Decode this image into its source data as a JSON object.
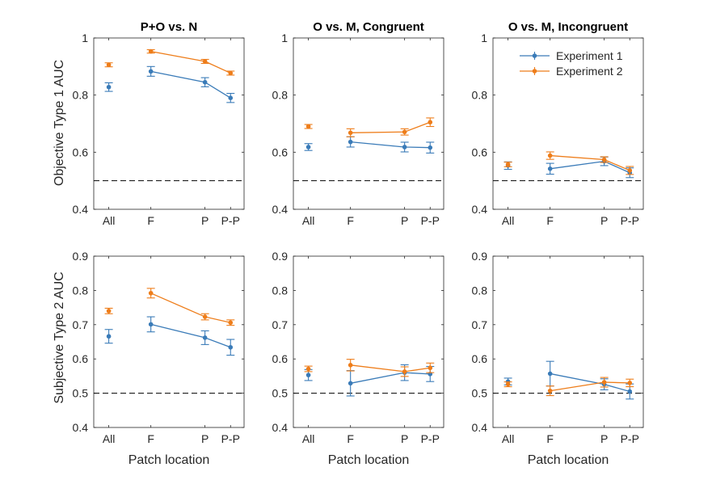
{
  "legend": [
    {
      "label": "Experiment 1",
      "color": "#3A7BB8"
    },
    {
      "label": "Experiment 2",
      "color": "#EE7D1A"
    }
  ],
  "row_ylabels": [
    "Objective Type 1 AUC",
    "Subjective Type 2 AUC"
  ],
  "xlabel": "Patch location",
  "chance_level": 0.5,
  "chart_data": [
    {
      "type": "line",
      "title": "P+O vs. N",
      "ylabel": "Objective Type 1 AUC",
      "xlabel": "",
      "categories": [
        "All",
        "F",
        "P",
        "P-P"
      ],
      "ylim": [
        0.4,
        1
      ],
      "yticks": [
        0.4,
        0.6,
        0.8,
        1
      ],
      "series": [
        {
          "name": "Experiment 1",
          "values": [
            0.828,
            0.883,
            0.845,
            0.79
          ],
          "errors": [
            0.015,
            0.017,
            0.016,
            0.016
          ]
        },
        {
          "name": "Experiment 2",
          "values": [
            0.906,
            0.953,
            0.918,
            0.877
          ],
          "errors": [
            0.007,
            0.006,
            0.007,
            0.007
          ]
        }
      ]
    },
    {
      "type": "line",
      "title": "O vs. M, Congruent",
      "ylabel": "",
      "xlabel": "",
      "categories": [
        "All",
        "F",
        "P",
        "P-P"
      ],
      "ylim": [
        0.4,
        1
      ],
      "yticks": [
        0.4,
        0.6,
        0.8,
        1
      ],
      "series": [
        {
          "name": "Experiment 1",
          "values": [
            0.618,
            0.636,
            0.618,
            0.616
          ],
          "errors": [
            0.012,
            0.018,
            0.017,
            0.019
          ]
        },
        {
          "name": "Experiment 2",
          "values": [
            0.69,
            0.668,
            0.671,
            0.705
          ],
          "errors": [
            0.007,
            0.014,
            0.011,
            0.015
          ]
        }
      ]
    },
    {
      "type": "line",
      "title": "O vs. M, Incongruent",
      "ylabel": "",
      "xlabel": "",
      "categories": [
        "All",
        "F",
        "P",
        "P-P"
      ],
      "ylim": [
        0.4,
        1
      ],
      "yticks": [
        0.4,
        0.6,
        0.8,
        1
      ],
      "legend_position": "top-right",
      "series": [
        {
          "name": "Experiment 1",
          "values": [
            0.553,
            0.542,
            0.568,
            0.528
          ],
          "errors": [
            0.013,
            0.019,
            0.015,
            0.017
          ]
        },
        {
          "name": "Experiment 2",
          "values": [
            0.557,
            0.588,
            0.574,
            0.536
          ],
          "errors": [
            0.008,
            0.013,
            0.01,
            0.014
          ]
        }
      ]
    },
    {
      "type": "line",
      "title": "",
      "ylabel": "Subjective Type 2 AUC",
      "xlabel": "Patch location",
      "categories": [
        "All",
        "F",
        "P",
        "P-P"
      ],
      "ylim": [
        0.4,
        0.9
      ],
      "yticks": [
        0.4,
        0.5,
        0.6,
        0.7,
        0.8,
        0.9
      ],
      "series": [
        {
          "name": "Experiment 1",
          "values": [
            0.666,
            0.701,
            0.662,
            0.634
          ],
          "errors": [
            0.02,
            0.022,
            0.02,
            0.023
          ]
        },
        {
          "name": "Experiment 2",
          "values": [
            0.74,
            0.792,
            0.723,
            0.706
          ],
          "errors": [
            0.008,
            0.014,
            0.009,
            0.008
          ]
        }
      ]
    },
    {
      "type": "line",
      "title": "",
      "ylabel": "",
      "xlabel": "Patch location",
      "categories": [
        "All",
        "F",
        "P",
        "P-P"
      ],
      "ylim": [
        0.4,
        0.9
      ],
      "yticks": [
        0.4,
        0.5,
        0.6,
        0.7,
        0.8,
        0.9
      ],
      "series": [
        {
          "name": "Experiment 1",
          "values": [
            0.553,
            0.529,
            0.56,
            0.556
          ],
          "errors": [
            0.016,
            0.037,
            0.023,
            0.022
          ]
        },
        {
          "name": "Experiment 2",
          "values": [
            0.571,
            0.582,
            0.563,
            0.574
          ],
          "errors": [
            0.008,
            0.017,
            0.014,
            0.014
          ]
        }
      ]
    },
    {
      "type": "line",
      "title": "",
      "ylabel": "",
      "xlabel": "Patch location",
      "categories": [
        "All",
        "F",
        "P",
        "P-P"
      ],
      "ylim": [
        0.4,
        0.9
      ],
      "yticks": [
        0.4,
        0.5,
        0.6,
        0.7,
        0.8,
        0.9
      ],
      "series": [
        {
          "name": "Experiment 1",
          "values": [
            0.534,
            0.557,
            0.526,
            0.505
          ],
          "errors": [
            0.01,
            0.036,
            0.016,
            0.022
          ]
        },
        {
          "name": "Experiment 2",
          "values": [
            0.526,
            0.507,
            0.532,
            0.53
          ],
          "errors": [
            0.007,
            0.014,
            0.014,
            0.011
          ]
        }
      ]
    }
  ]
}
